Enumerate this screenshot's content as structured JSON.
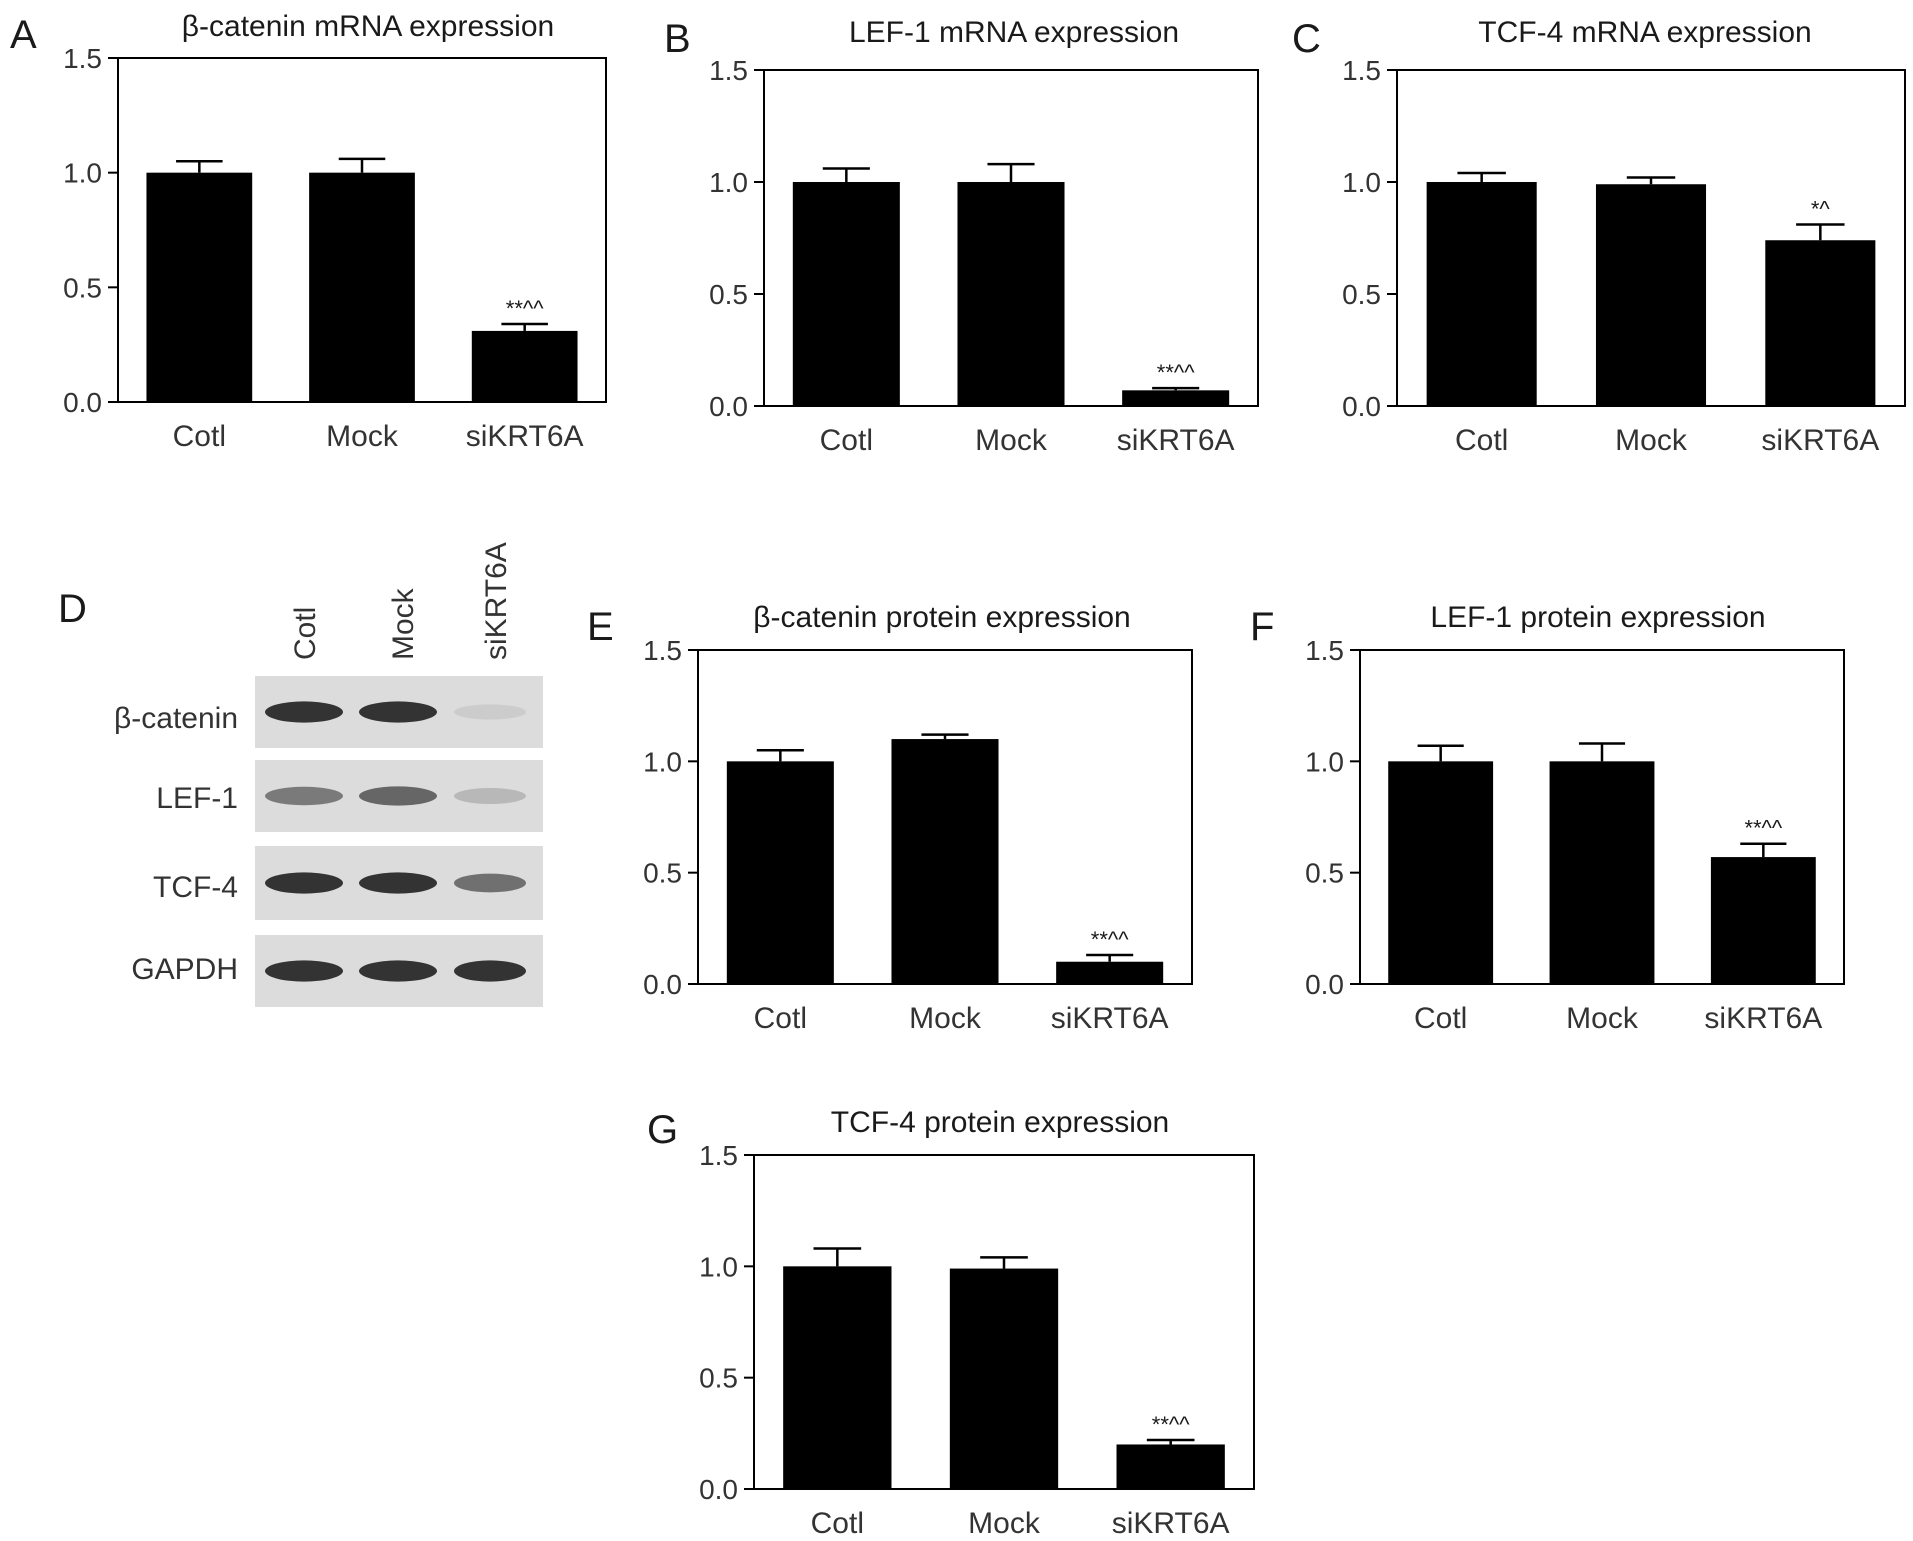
{
  "chart_data": [
    {
      "panel": "A",
      "type": "bar",
      "title": "β-catenin mRNA expression",
      "categories": [
        "Cotl",
        "Mock",
        "siKRT6A"
      ],
      "values": [
        1.0,
        1.0,
        0.31
      ],
      "errors": [
        0.05,
        0.06,
        0.03
      ],
      "annotations": [
        "",
        "",
        "**^^"
      ],
      "ylim": [
        0,
        1.5
      ],
      "yticks": [
        "0.0",
        "0.5",
        "1.0",
        "1.5"
      ],
      "bar_color": "#000000"
    },
    {
      "panel": "B",
      "type": "bar",
      "title": "LEF-1 mRNA expression",
      "categories": [
        "Cotl",
        "Mock",
        "siKRT6A"
      ],
      "values": [
        1.0,
        1.0,
        0.07
      ],
      "errors": [
        0.06,
        0.08,
        0.01
      ],
      "annotations": [
        "",
        "",
        "**^^"
      ],
      "ylim": [
        0,
        1.5
      ],
      "yticks": [
        "0.0",
        "0.5",
        "1.0",
        "1.5"
      ],
      "bar_color": "#000000"
    },
    {
      "panel": "C",
      "type": "bar",
      "title": "TCF-4 mRNA expression",
      "categories": [
        "Cotl",
        "Mock",
        "siKRT6A"
      ],
      "values": [
        1.0,
        0.99,
        0.74
      ],
      "errors": [
        0.04,
        0.03,
        0.07
      ],
      "annotations": [
        "",
        "",
        "*^"
      ],
      "ylim": [
        0,
        1.5
      ],
      "yticks": [
        "0.0",
        "0.5",
        "1.0",
        "1.5"
      ],
      "bar_color": "#000000"
    },
    {
      "panel": "E",
      "type": "bar",
      "title": "β-catenin protein expression",
      "categories": [
        "Cotl",
        "Mock",
        "siKRT6A"
      ],
      "values": [
        1.0,
        1.1,
        0.1
      ],
      "errors": [
        0.05,
        0.02,
        0.03
      ],
      "annotations": [
        "",
        "",
        "**^^"
      ],
      "ylim": [
        0,
        1.5
      ],
      "yticks": [
        "0.0",
        "0.5",
        "1.0",
        "1.5"
      ],
      "bar_color": "#000000"
    },
    {
      "panel": "F",
      "type": "bar",
      "title": "LEF-1 protein expression",
      "categories": [
        "Cotl",
        "Mock",
        "siKRT6A"
      ],
      "values": [
        1.0,
        1.0,
        0.57
      ],
      "errors": [
        0.07,
        0.08,
        0.06
      ],
      "annotations": [
        "",
        "",
        "**^^"
      ],
      "ylim": [
        0,
        1.5
      ],
      "yticks": [
        "0.0",
        "0.5",
        "1.0",
        "1.5"
      ],
      "bar_color": "#000000"
    },
    {
      "panel": "G",
      "type": "bar",
      "title": "TCF-4 protein expression",
      "categories": [
        "Cotl",
        "Mock",
        "siKRT6A"
      ],
      "values": [
        1.0,
        0.99,
        0.2
      ],
      "errors": [
        0.08,
        0.05,
        0.02
      ],
      "annotations": [
        "",
        "",
        "**^^"
      ],
      "ylim": [
        0,
        1.5
      ],
      "yticks": [
        "0.0",
        "0.5",
        "1.0",
        "1.5"
      ],
      "bar_color": "#000000"
    }
  ],
  "western_blot": {
    "panel": "D",
    "lanes": [
      "Cotl",
      "Mock",
      "siKRT6A"
    ],
    "rows": [
      {
        "label": "β-catenin",
        "intensities": [
          0.9,
          0.9,
          0.15
        ]
      },
      {
        "label": "LEF-1",
        "intensities": [
          0.55,
          0.65,
          0.25
        ]
      },
      {
        "label": "TCF-4",
        "intensities": [
          0.9,
          0.9,
          0.6
        ]
      },
      {
        "label": "GAPDH",
        "intensities": [
          0.9,
          0.9,
          0.9
        ]
      }
    ]
  }
}
